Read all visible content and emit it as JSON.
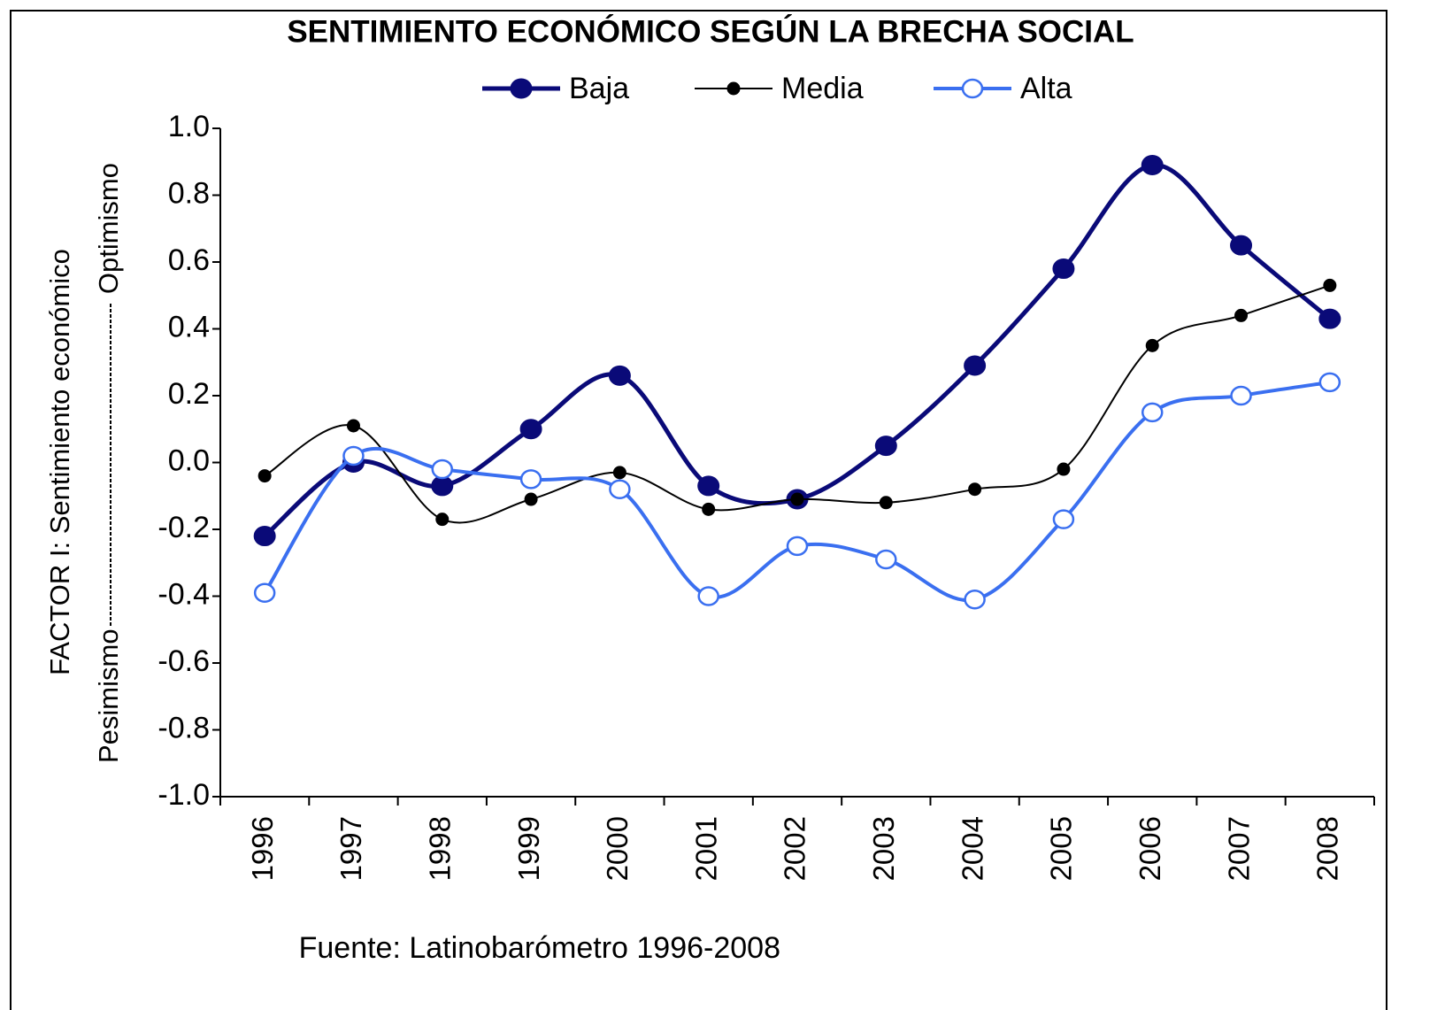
{
  "chart_data": {
    "type": "line",
    "title": "SENTIMIENTO ECONÓMICO SEGÚN LA BRECHA SOCIAL",
    "y_label": "FACTOR I: Sentimiento económico",
    "y_label_low": "Pesimismo",
    "y_label_high": "Optimismo",
    "source": "Fuente: Latinobarómetro 1996-2008",
    "categories": [
      "1996",
      "1997",
      "1998",
      "1999",
      "2000",
      "2001",
      "2002",
      "2003",
      "2004",
      "2005",
      "2006",
      "2007",
      "2008"
    ],
    "series": [
      {
        "name": "Baja",
        "color": "#0a0a78",
        "values": [
          -0.22,
          0.0,
          -0.07,
          0.1,
          0.26,
          -0.07,
          -0.11,
          0.05,
          0.29,
          0.58,
          0.89,
          0.65,
          0.43
        ]
      },
      {
        "name": "Media",
        "color": "#000000",
        "values": [
          -0.04,
          0.11,
          -0.17,
          -0.11,
          -0.03,
          -0.14,
          -0.11,
          -0.12,
          -0.08,
          -0.02,
          0.35,
          0.44,
          0.53
        ]
      },
      {
        "name": "Alta",
        "color": "#3a6ff0",
        "values": [
          -0.39,
          0.02,
          -0.02,
          -0.05,
          -0.08,
          -0.4,
          -0.25,
          -0.29,
          -0.41,
          -0.17,
          0.15,
          0.2,
          0.24
        ]
      }
    ],
    "ylim": [
      -1,
      1
    ],
    "yticks": [
      {
        "value": -1,
        "label": "-1.0"
      },
      -0.8,
      -0.6,
      -0.4,
      -0.2,
      {
        "value": 0,
        "label": "0.0"
      },
      0.2,
      0.4,
      0.6,
      0.8,
      {
        "value": 1,
        "label": "1.0"
      }
    ],
    "grid": false
  }
}
